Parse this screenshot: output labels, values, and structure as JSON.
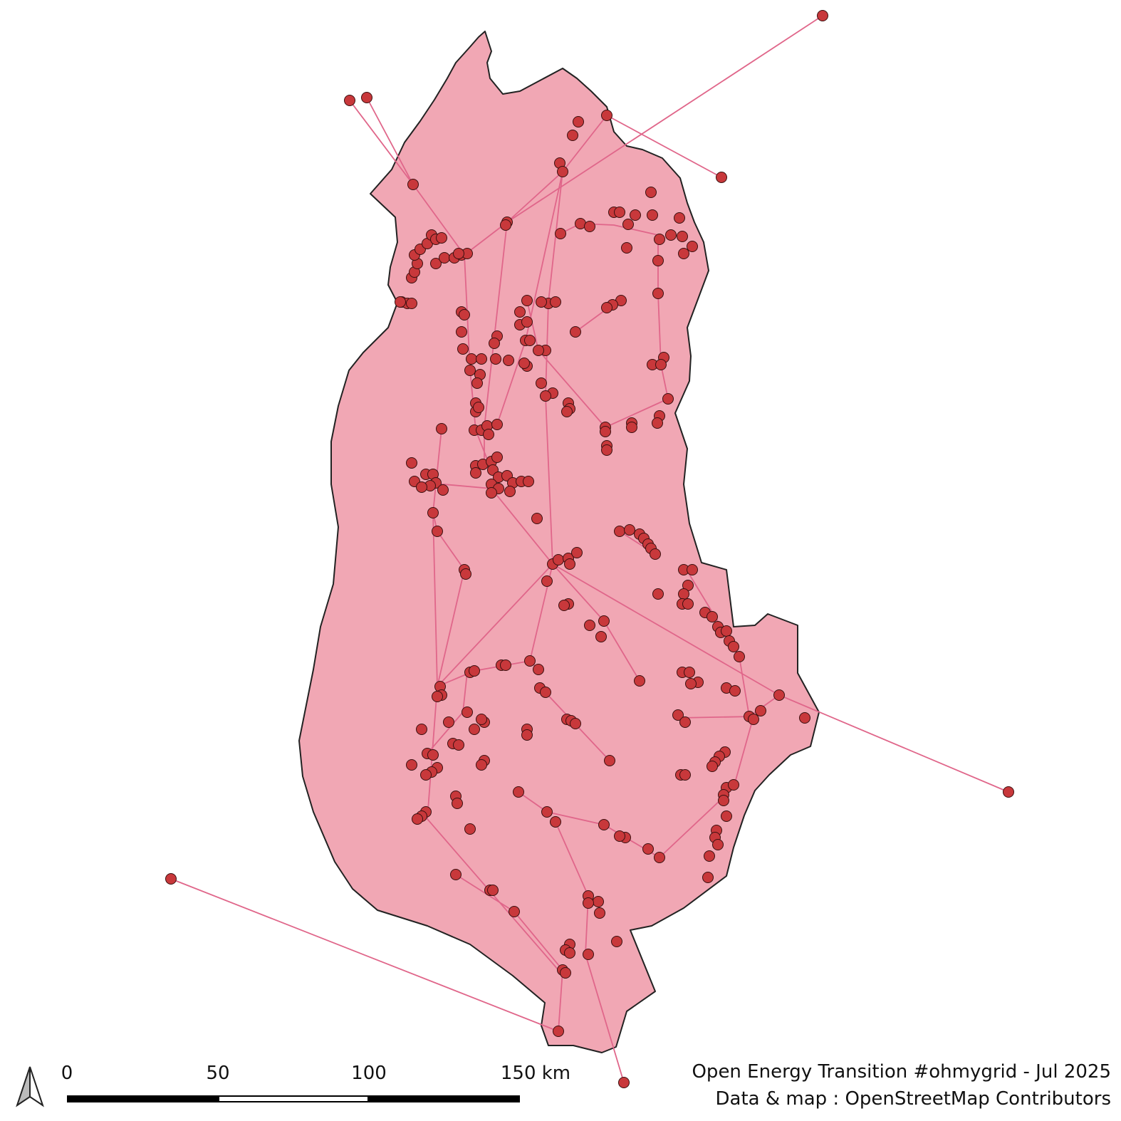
{
  "map": {
    "subject": "power grid network map",
    "colors": {
      "region_fill": "#f1a7b4",
      "region_stroke": "#222222",
      "line": "#e0668a",
      "node_fill": "#c8383b",
      "node_stroke": "#3a1010"
    }
  },
  "scale_bar": {
    "labels": [
      "0",
      "50",
      "100",
      "150 km"
    ]
  },
  "credits": {
    "line1": "Open Energy Transition #ohmygrid - Jul 2025",
    "line2": "Data & map : OpenStreetMap Contributors"
  },
  "icons": {
    "north_arrow": "north-arrow-icon"
  }
}
